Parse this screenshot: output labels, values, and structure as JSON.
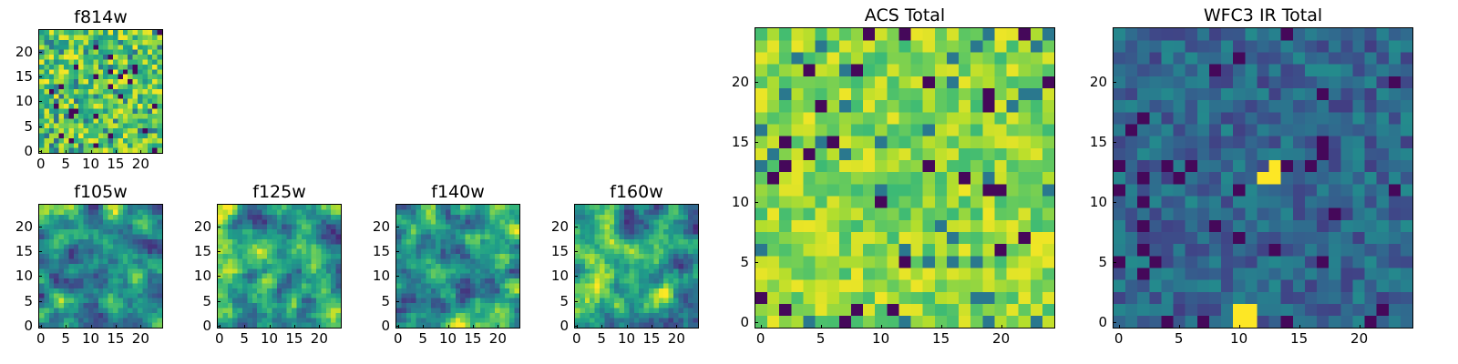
{
  "chart_data": [
    {
      "type": "heatmap",
      "id": "f814w",
      "title": "f814w",
      "grid": 25,
      "xlim": [
        0,
        24
      ],
      "ylim": [
        0,
        24
      ],
      "xticks": [
        "0",
        "5",
        "10",
        "15",
        "20"
      ],
      "yticks": [
        "0",
        "5",
        "10",
        "15",
        "20"
      ],
      "colormap": "viridis",
      "texture": "fine-noise",
      "seed": 11
    },
    {
      "type": "heatmap",
      "id": "f105w",
      "title": "f105w",
      "grid": 25,
      "xlim": [
        0,
        24
      ],
      "ylim": [
        0,
        24
      ],
      "xticks": [
        "0",
        "5",
        "10",
        "15",
        "20"
      ],
      "yticks": [
        "0",
        "5",
        "10",
        "15",
        "20"
      ],
      "colormap": "viridis",
      "texture": "smooth",
      "seed": 23
    },
    {
      "type": "heatmap",
      "id": "f125w",
      "title": "f125w",
      "grid": 25,
      "xlim": [
        0,
        24
      ],
      "ylim": [
        0,
        24
      ],
      "xticks": [
        "0",
        "5",
        "10",
        "15",
        "20"
      ],
      "yticks": [
        "0",
        "5",
        "10",
        "15",
        "20"
      ],
      "colormap": "viridis",
      "texture": "smooth",
      "seed": 37
    },
    {
      "type": "heatmap",
      "id": "f140w",
      "title": "f140w",
      "grid": 25,
      "xlim": [
        0,
        24
      ],
      "ylim": [
        0,
        24
      ],
      "xticks": [
        "0",
        "5",
        "10",
        "15",
        "20"
      ],
      "yticks": [
        "0",
        "5",
        "10",
        "15",
        "20"
      ],
      "colormap": "viridis",
      "texture": "smooth",
      "seed": 41
    },
    {
      "type": "heatmap",
      "id": "f160w",
      "title": "f160w",
      "grid": 25,
      "xlim": [
        0,
        24
      ],
      "ylim": [
        0,
        24
      ],
      "xticks": [
        "0",
        "5",
        "10",
        "15",
        "20"
      ],
      "yticks": [
        "0",
        "5",
        "10",
        "15",
        "20"
      ],
      "colormap": "viridis",
      "texture": "smooth",
      "seed": 53
    },
    {
      "type": "heatmap",
      "id": "acs-total",
      "title": "ACS Total",
      "grid": 25,
      "xlim": [
        0,
        24
      ],
      "ylim": [
        0,
        24
      ],
      "xticks": [
        "0",
        "5",
        "10",
        "15",
        "20"
      ],
      "yticks": [
        "0",
        "5",
        "10",
        "15",
        "20"
      ],
      "colormap": "viridis",
      "texture": "bright-noise",
      "seed": 67
    },
    {
      "type": "heatmap",
      "id": "wfc3-ir-total",
      "title": "WFC3 IR Total",
      "grid": 25,
      "xlim": [
        0,
        24
      ],
      "ylim": [
        0,
        24
      ],
      "xticks": [
        "0",
        "5",
        "10",
        "15",
        "20"
      ],
      "yticks": [
        "0",
        "5",
        "10",
        "15",
        "20"
      ],
      "colormap": "viridis",
      "texture": "dark-noise",
      "seed": 79,
      "bright_cells": [
        [
          12,
          12
        ],
        [
          13,
          12
        ],
        [
          13,
          13
        ],
        [
          10,
          1
        ],
        [
          11,
          1
        ],
        [
          10,
          0
        ],
        [
          11,
          0
        ]
      ]
    }
  ]
}
